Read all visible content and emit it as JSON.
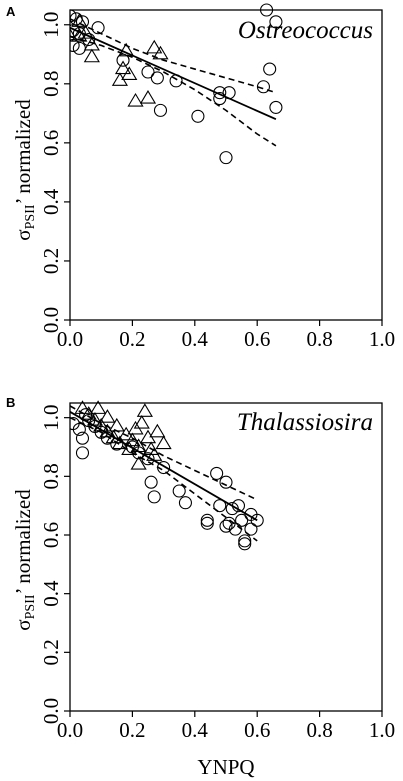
{
  "chart_data": [
    {
      "panel_label": "A",
      "type": "scatter",
      "annotation": "Ostreococcus",
      "xlabel": "",
      "ylabel_main": "σ",
      "ylabel_sub": "PSII",
      "ylabel_rest": "’ normalized",
      "xlim": [
        0.0,
        1.0
      ],
      "ylim": [
        0.0,
        1.05
      ],
      "x_ticks": [
        "0.0",
        "0.2",
        "0.4",
        "0.6",
        "0.8",
        "1.0"
      ],
      "y_ticks": [
        "0.0",
        "0.2",
        "0.4",
        "0.6",
        "0.8",
        "1.0"
      ],
      "grid": false,
      "series": [
        {
          "marker": "circle",
          "points": [
            [
              0.0,
              1.03
            ],
            [
              0.01,
              0.98
            ],
            [
              0.02,
              1.02
            ],
            [
              0.03,
              0.97
            ],
            [
              0.01,
              0.93
            ],
            [
              0.04,
              1.01
            ],
            [
              0.06,
              0.95
            ],
            [
              0.09,
              0.99
            ],
            [
              0.03,
              0.92
            ],
            [
              0.17,
              0.88
            ],
            [
              0.25,
              0.84
            ],
            [
              0.28,
              0.82
            ],
            [
              0.29,
              0.71
            ],
            [
              0.34,
              0.81
            ],
            [
              0.41,
              0.69
            ],
            [
              0.48,
              0.77
            ],
            [
              0.48,
              0.75
            ],
            [
              0.51,
              0.77
            ],
            [
              0.5,
              0.55
            ],
            [
              0.62,
              0.79
            ],
            [
              0.64,
              0.85
            ],
            [
              0.66,
              0.72
            ],
            [
              0.66,
              1.01
            ],
            [
              0.63,
              1.05
            ]
          ]
        },
        {
          "marker": "triangle",
          "points": [
            [
              0.03,
              1.01
            ],
            [
              0.05,
              0.97
            ],
            [
              0.07,
              0.93
            ],
            [
              0.07,
              0.89
            ],
            [
              0.03,
              0.96
            ],
            [
              0.17,
              0.85
            ],
            [
              0.16,
              0.81
            ],
            [
              0.18,
              0.91
            ],
            [
              0.19,
              0.83
            ],
            [
              0.21,
              0.74
            ],
            [
              0.25,
              0.75
            ],
            [
              0.27,
              0.92
            ],
            [
              0.29,
              0.9
            ],
            [
              0.0,
              0.96
            ]
          ]
        }
      ],
      "fit": {
        "x": [
          0.0,
          0.66
        ],
        "y": [
          0.99,
          0.68
        ]
      },
      "ci_upper": {
        "x": [
          0.0,
          0.1,
          0.2,
          0.3,
          0.4,
          0.5,
          0.6,
          0.66
        ],
        "y": [
          1.02,
          0.97,
          0.92,
          0.88,
          0.85,
          0.82,
          0.79,
          0.77
        ]
      },
      "ci_lower": {
        "x": [
          0.0,
          0.1,
          0.2,
          0.3,
          0.4,
          0.5,
          0.6,
          0.66
        ],
        "y": [
          0.96,
          0.93,
          0.89,
          0.84,
          0.78,
          0.71,
          0.63,
          0.59
        ]
      }
    },
    {
      "panel_label": "B",
      "type": "scatter",
      "annotation": "Thalassiosira",
      "xlabel": "YNPQ",
      "ylabel_main": "σ",
      "ylabel_sub": "PSII",
      "ylabel_rest": "’ normalized",
      "xlim": [
        0.0,
        1.0
      ],
      "ylim": [
        0.0,
        1.05
      ],
      "x_ticks": [
        "0.0",
        "0.2",
        "0.4",
        "0.6",
        "0.8",
        "1.0"
      ],
      "y_ticks": [
        "0.0",
        "0.2",
        "0.4",
        "0.6",
        "0.8",
        "1.0"
      ],
      "grid": false,
      "series": [
        {
          "marker": "circle",
          "points": [
            [
              0.01,
              0.98
            ],
            [
              0.03,
              0.96
            ],
            [
              0.04,
              0.93
            ],
            [
              0.04,
              0.88
            ],
            [
              0.05,
              1.01
            ],
            [
              0.06,
              0.99
            ],
            [
              0.08,
              0.97
            ],
            [
              0.1,
              0.95
            ],
            [
              0.12,
              0.93
            ],
            [
              0.15,
              0.91
            ],
            [
              0.2,
              0.9
            ],
            [
              0.22,
              0.88
            ],
            [
              0.25,
              0.86
            ],
            [
              0.26,
              0.78
            ],
            [
              0.27,
              0.73
            ],
            [
              0.3,
              0.83
            ],
            [
              0.35,
              0.75
            ],
            [
              0.37,
              0.71
            ],
            [
              0.44,
              0.64
            ],
            [
              0.44,
              0.65
            ],
            [
              0.47,
              0.81
            ],
            [
              0.48,
              0.7
            ],
            [
              0.5,
              0.63
            ],
            [
              0.5,
              0.78
            ],
            [
              0.51,
              0.64
            ],
            [
              0.52,
              0.69
            ],
            [
              0.53,
              0.62
            ],
            [
              0.54,
              0.7
            ],
            [
              0.55,
              0.65
            ],
            [
              0.56,
              0.57
            ],
            [
              0.56,
              0.58
            ],
            [
              0.58,
              0.67
            ],
            [
              0.58,
              0.62
            ],
            [
              0.6,
              0.65
            ]
          ]
        },
        {
          "marker": "triangle",
          "points": [
            [
              0.04,
              1.03
            ],
            [
              0.06,
              1.01
            ],
            [
              0.08,
              0.99
            ],
            [
              0.1,
              0.97
            ],
            [
              0.12,
              0.95
            ],
            [
              0.14,
              0.93
            ],
            [
              0.16,
              0.91
            ],
            [
              0.18,
              0.94
            ],
            [
              0.19,
              0.89
            ],
            [
              0.2,
              0.92
            ],
            [
              0.21,
              0.96
            ],
            [
              0.22,
              0.9
            ],
            [
              0.23,
              0.98
            ],
            [
              0.24,
              1.02
            ],
            [
              0.25,
              0.93
            ],
            [
              0.26,
              0.89
            ],
            [
              0.27,
              0.87
            ],
            [
              0.28,
              0.95
            ],
            [
              0.3,
              0.91
            ],
            [
              0.15,
              0.97
            ],
            [
              0.12,
              1.0
            ],
            [
              0.09,
              1.03
            ],
            [
              0.22,
              0.84
            ]
          ]
        }
      ],
      "fit": {
        "x": [
          0.0,
          0.6
        ],
        "y": [
          1.02,
          0.65
        ]
      },
      "ci_upper": {
        "x": [
          0.0,
          0.1,
          0.2,
          0.3,
          0.4,
          0.5,
          0.6
        ],
        "y": [
          1.04,
          0.98,
          0.93,
          0.87,
          0.82,
          0.77,
          0.72
        ]
      },
      "ci_lower": {
        "x": [
          0.0,
          0.1,
          0.2,
          0.3,
          0.4,
          0.5,
          0.6
        ],
        "y": [
          1.0,
          0.95,
          0.88,
          0.82,
          0.74,
          0.66,
          0.58
        ]
      }
    }
  ]
}
